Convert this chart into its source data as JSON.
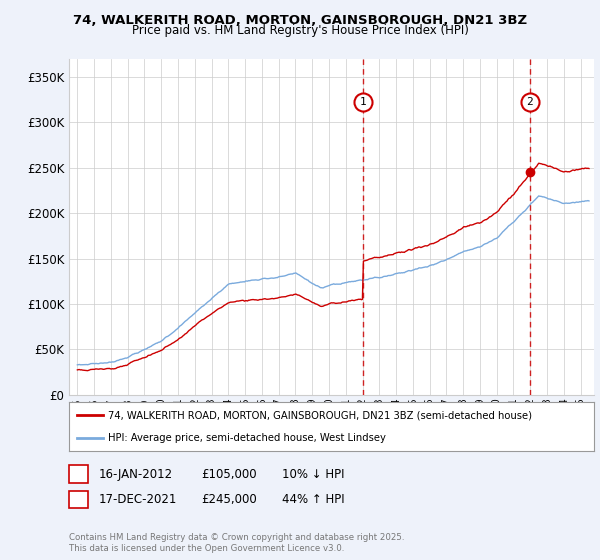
{
  "title_line1": "74, WALKERITH ROAD, MORTON, GAINSBOROUGH, DN21 3BZ",
  "title_line2": "Price paid vs. HM Land Registry's House Price Index (HPI)",
  "ylabel_ticks": [
    0,
    50000,
    100000,
    150000,
    200000,
    250000,
    300000,
    350000
  ],
  "ylabel_labels": [
    "£0",
    "£50K",
    "£100K",
    "£150K",
    "£200K",
    "£250K",
    "£300K",
    "£350K"
  ],
  "xlim_start": 1994.5,
  "xlim_end": 2025.8,
  "ylim_min": 0,
  "ylim_max": 370000,
  "background_color": "#eef2fa",
  "plot_bg_color": "#ffffff",
  "grid_color": "#cccccc",
  "red_color": "#cc0000",
  "blue_color": "#7aaadd",
  "marker1_year": 2012.04,
  "marker2_year": 2021.96,
  "marker1_price": 105000,
  "marker2_price": 245000,
  "legend_line1": "74, WALKERITH ROAD, MORTON, GAINSBOROUGH, DN21 3BZ (semi-detached house)",
  "legend_line2": "HPI: Average price, semi-detached house, West Lindsey",
  "table_row1": [
    "1",
    "16-JAN-2012",
    "£105,000",
    "10% ↓ HPI"
  ],
  "table_row2": [
    "2",
    "17-DEC-2021",
    "£245,000",
    "44% ↑ HPI"
  ],
  "copyright": "Contains HM Land Registry data © Crown copyright and database right 2025.\nThis data is licensed under the Open Government Licence v3.0."
}
